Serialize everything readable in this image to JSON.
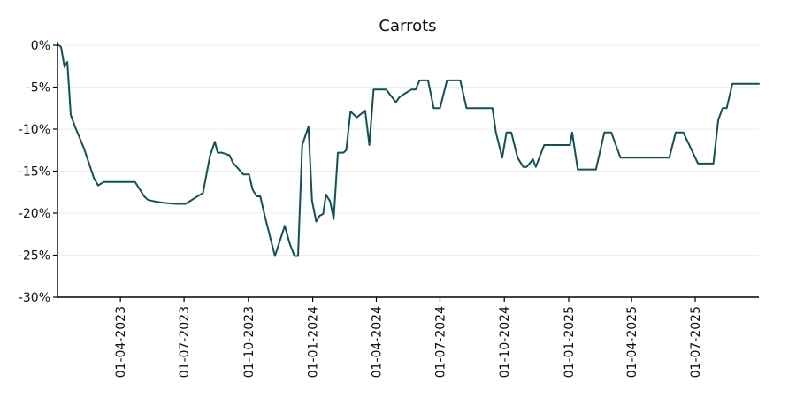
{
  "chart_data": {
    "type": "line",
    "title": "Carrots",
    "xlabel": "",
    "ylabel": "",
    "x_tick_labels": [
      "01-04-2023",
      "01-07-2023",
      "01-10-2023",
      "01-01-2024",
      "01-04-2024",
      "01-07-2024",
      "01-10-2024",
      "01-01-2025",
      "01-04-2025",
      "01-07-2025"
    ],
    "x_tick_dates": [
      "2023-04-01",
      "2023-07-01",
      "2023-10-01",
      "2024-01-01",
      "2024-04-01",
      "2024-07-01",
      "2024-10-01",
      "2025-01-01",
      "2025-04-01",
      "2025-07-01"
    ],
    "xlim": [
      "2023-01-01",
      "2025-09-30"
    ],
    "y_tick_labels": [
      "0%",
      "-5%",
      "-10%",
      "-15%",
      "-20%",
      "-25%",
      "-30%"
    ],
    "y_ticks": [
      0,
      -5,
      -10,
      -15,
      -20,
      -25,
      -30
    ],
    "ylim": [
      -30,
      0
    ],
    "grid": "horizontal",
    "line_color": "#0e5454",
    "series": [
      {
        "x": [
          "2023-01-01",
          "2023-01-03",
          "2023-01-06",
          "2023-01-11",
          "2023-01-15",
          "2023-01-20",
          "2023-01-26",
          "2023-02-08",
          "2023-02-22",
          "2023-02-28",
          "2023-03-08",
          "2023-03-16",
          "2023-03-23",
          "2023-04-08",
          "2023-04-22",
          "2023-05-05",
          "2023-05-10",
          "2023-05-15",
          "2023-05-20",
          "2023-05-27",
          "2023-06-05",
          "2023-06-20",
          "2023-07-03",
          "2023-07-28",
          "2023-08-07",
          "2023-08-14",
          "2023-08-18",
          "2023-08-24",
          "2023-09-04",
          "2023-09-09",
          "2023-09-24",
          "2023-10-02",
          "2023-10-07",
          "2023-10-13",
          "2023-10-18",
          "2023-10-25",
          "2023-11-08",
          "2023-11-22",
          "2023-11-29",
          "2023-12-06",
          "2023-12-11",
          "2023-12-17",
          "2023-12-26",
          "2023-12-31",
          "2024-01-06",
          "2024-01-11",
          "2024-01-16",
          "2024-01-20",
          "2024-01-26",
          "2024-01-31",
          "2024-02-06",
          "2024-02-10",
          "2024-02-14",
          "2024-02-18",
          "2024-02-24",
          "2024-03-04",
          "2024-03-16",
          "2024-03-22",
          "2024-03-28",
          "2024-04-03",
          "2024-04-09",
          "2024-04-15",
          "2024-04-29",
          "2024-05-04",
          "2024-05-11",
          "2024-05-21",
          "2024-05-27",
          "2024-06-02",
          "2024-06-08",
          "2024-06-14",
          "2024-06-22",
          "2024-06-26",
          "2024-07-01",
          "2024-07-11",
          "2024-07-14",
          "2024-07-24",
          "2024-07-30",
          "2024-08-08",
          "2024-08-28",
          "2024-09-14",
          "2024-09-19",
          "2024-09-28",
          "2024-10-04",
          "2024-10-11",
          "2024-10-20",
          "2024-10-28",
          "2024-11-02",
          "2024-11-11",
          "2024-11-15",
          "2024-11-27",
          "2024-12-06",
          "2024-12-30",
          "2025-01-03",
          "2025-01-06",
          "2025-01-14",
          "2025-01-20",
          "2025-02-09",
          "2025-02-21",
          "2025-03-03",
          "2025-03-16",
          "2025-04-01",
          "2025-05-11",
          "2025-05-20",
          "2025-05-25",
          "2025-06-03",
          "2025-06-09",
          "2025-06-14",
          "2025-07-05",
          "2025-07-14",
          "2025-07-23",
          "2025-07-27",
          "2025-08-03",
          "2025-08-09",
          "2025-08-15",
          "2025-08-23",
          "2025-08-29",
          "2025-09-30"
        ],
        "y": [
          0,
          0,
          -0.2,
          -2.6,
          -2.0,
          -8.3,
          -9.7,
          -12.3,
          -15.8,
          -16.7,
          -16.3,
          -16.3,
          -16.3,
          -16.3,
          -16.3,
          -18.0,
          -18.4,
          -18.5,
          -18.6,
          -18.7,
          -18.8,
          -18.9,
          -18.9,
          -17.6,
          -13.2,
          -11.5,
          -12.8,
          -12.8,
          -13.1,
          -14.0,
          -15.4,
          -15.4,
          -17.2,
          -18.0,
          -18.0,
          -20.5,
          -25.1,
          -21.5,
          -23.6,
          -25.1,
          -25.1,
          -11.9,
          -9.7,
          -18.5,
          -21.0,
          -20.3,
          -20.1,
          -17.8,
          -18.6,
          -20.7,
          -12.8,
          -12.8,
          -12.8,
          -12.5,
          -7.9,
          -8.6,
          -7.8,
          -11.9,
          -5.3,
          -5.3,
          -5.3,
          -5.3,
          -6.8,
          -6.2,
          -5.8,
          -5.3,
          -5.3,
          -4.2,
          -4.2,
          -4.2,
          -7.5,
          -7.5,
          -7.5,
          -4.2,
          -4.2,
          -4.2,
          -4.2,
          -7.5,
          -7.5,
          -7.5,
          -10.4,
          -13.4,
          -10.4,
          -10.4,
          -13.4,
          -14.5,
          -14.5,
          -13.6,
          -14.5,
          -11.9,
          -11.9,
          -11.9,
          -11.9,
          -10.4,
          -14.8,
          -14.8,
          -14.8,
          -10.4,
          -10.4,
          -13.4,
          -13.4,
          -13.4,
          -13.4,
          -13.4,
          -10.4,
          -10.4,
          -10.4,
          -14.1,
          -14.1,
          -14.1,
          -14.1,
          -8.9,
          -7.5,
          -7.5,
          -4.6,
          -4.6,
          -4.6
        ]
      }
    ]
  }
}
